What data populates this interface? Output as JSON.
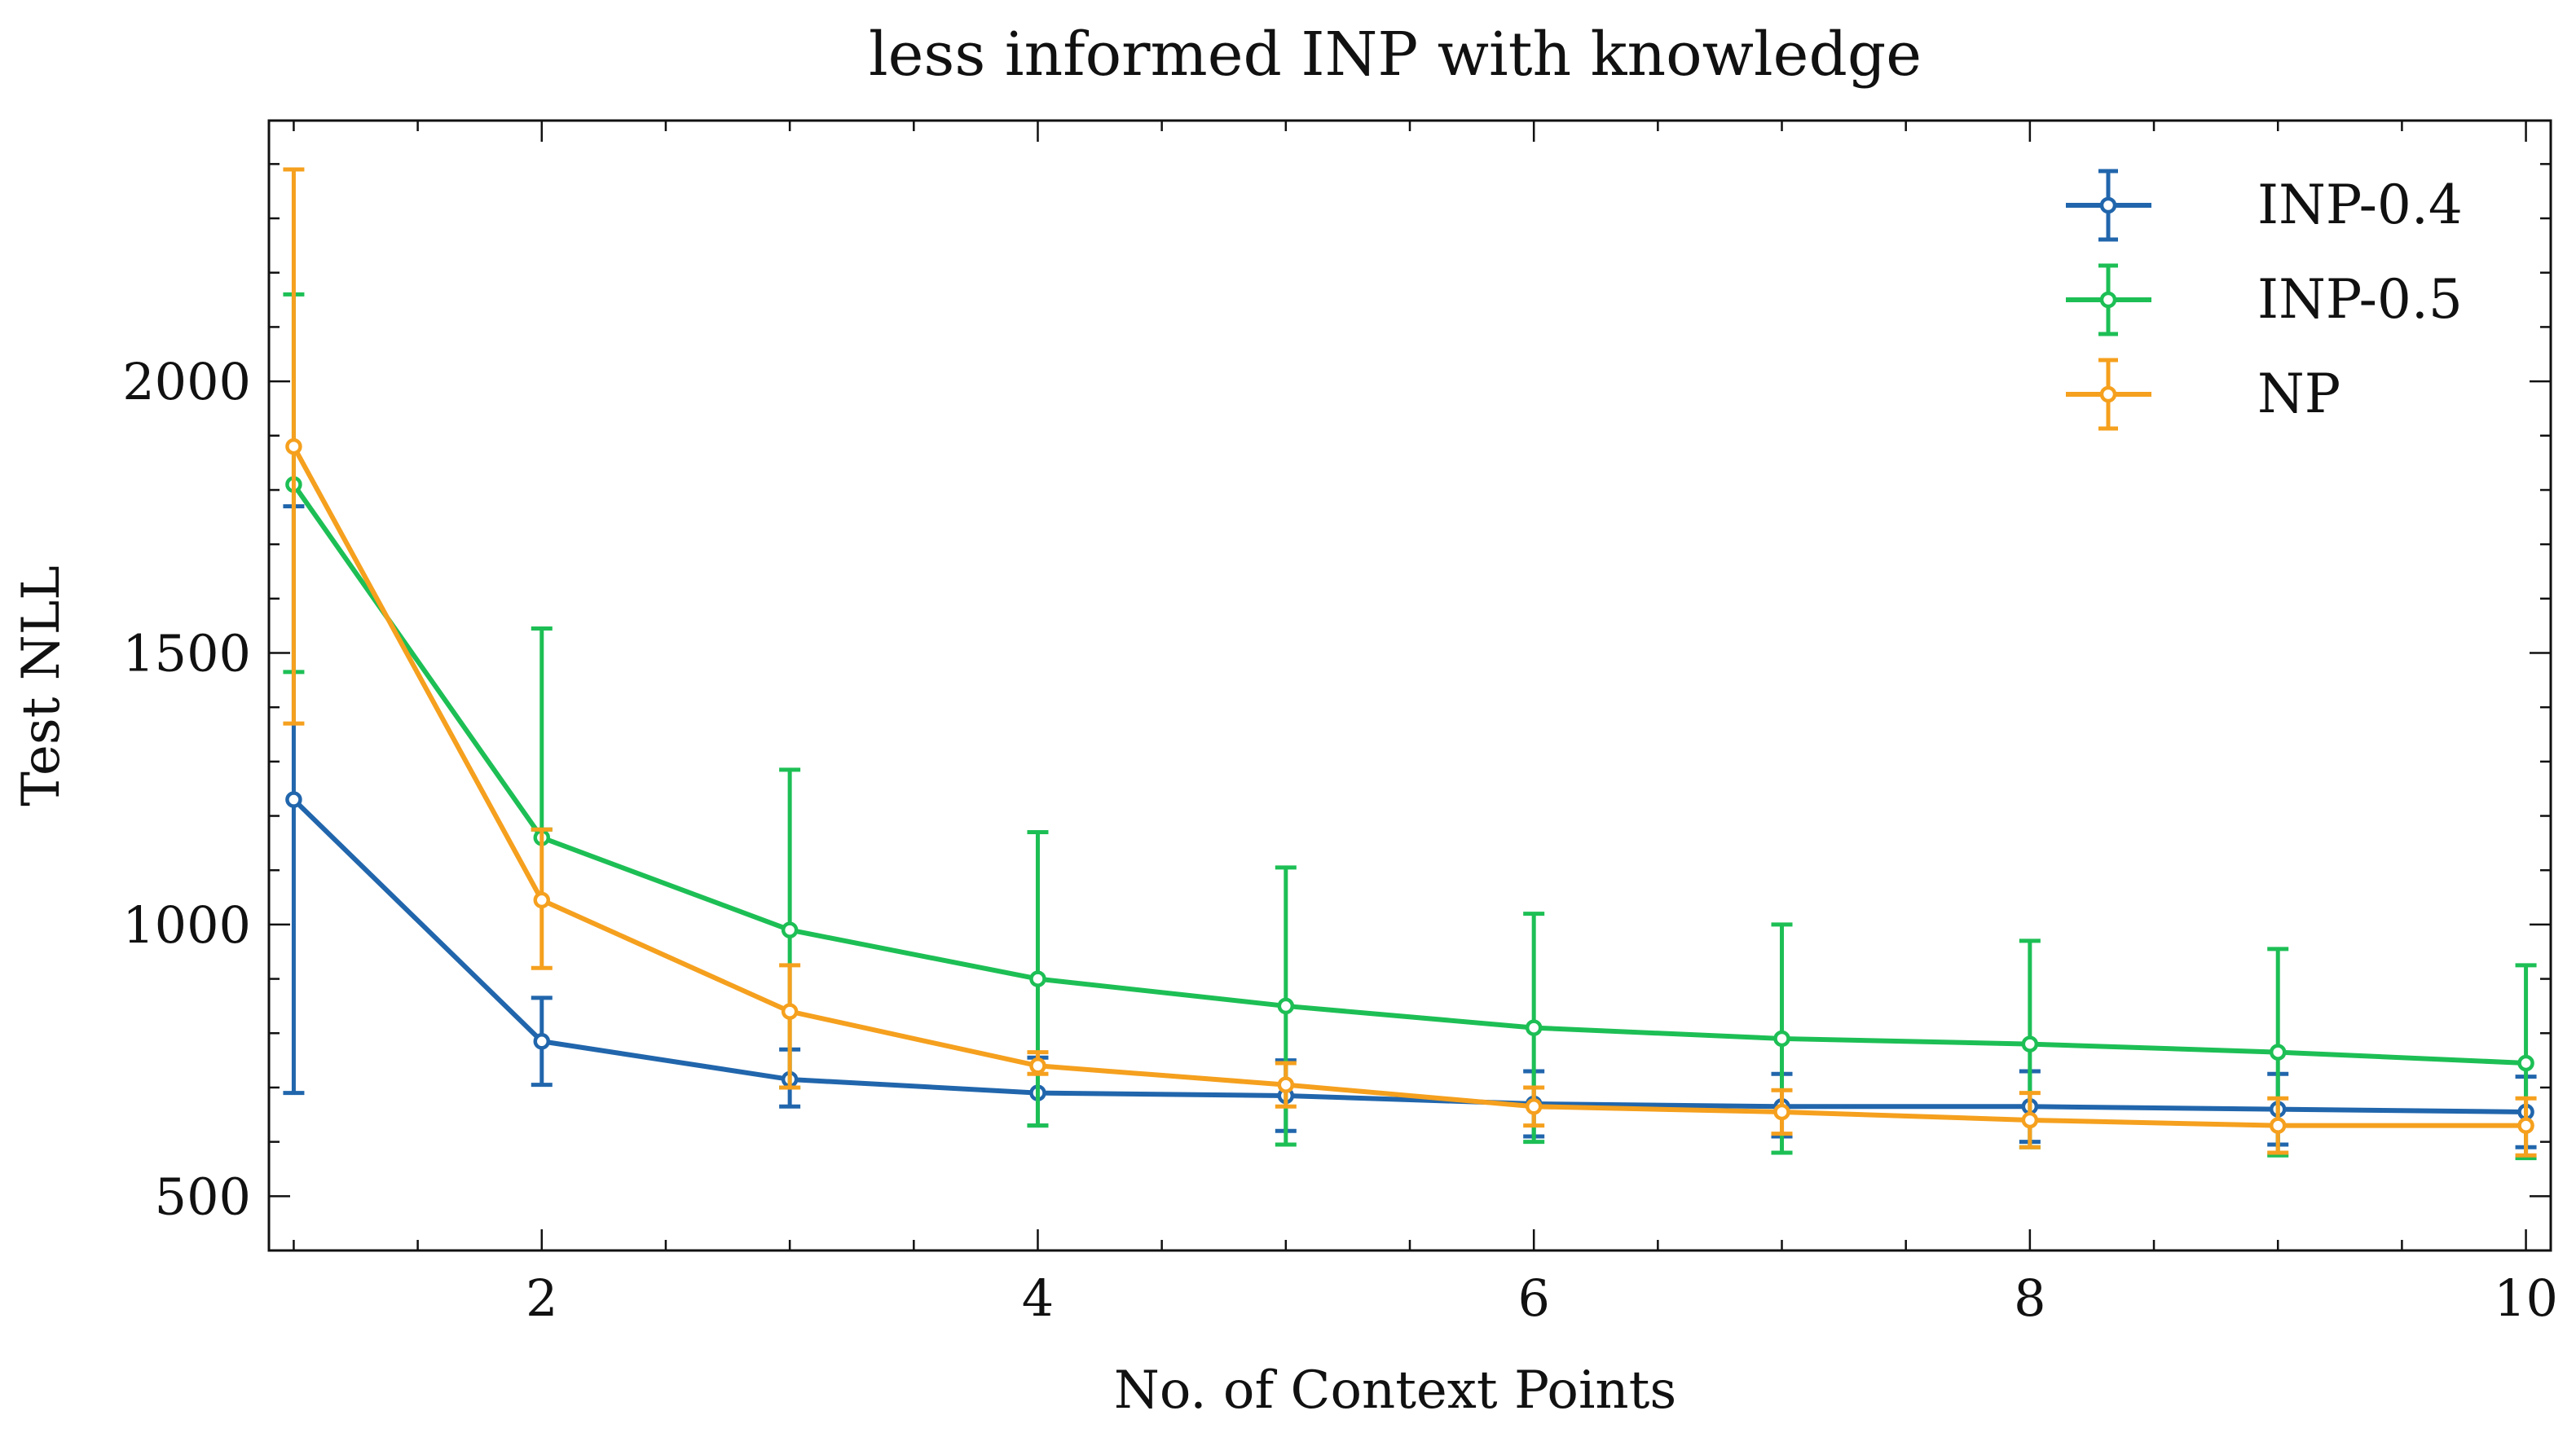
{
  "chart_data": {
    "type": "line",
    "title": "less informed INP with knowledge",
    "xlabel": "No. of Context Points",
    "ylabel": "Test NLL",
    "xlim": [
      0.9,
      10.1
    ],
    "ylim": [
      400,
      2480
    ],
    "xticks": [
      2,
      4,
      6,
      8,
      10
    ],
    "yticks": [
      500,
      1000,
      1500,
      2000
    ],
    "x": [
      1,
      2,
      3,
      4,
      5,
      6,
      7,
      8,
      9,
      10
    ],
    "legend_position": "top-right",
    "grid": false,
    "series": [
      {
        "name": "INP-0.4",
        "color": "#2166ac",
        "values": [
          1230,
          785,
          715,
          690,
          685,
          670,
          665,
          665,
          660,
          655
        ],
        "err_low": [
          690,
          705,
          665,
          630,
          620,
          610,
          610,
          600,
          595,
          590
        ],
        "err_high": [
          1770,
          865,
          770,
          755,
          750,
          730,
          725,
          730,
          725,
          720
        ]
      },
      {
        "name": "INP-0.5",
        "color": "#1dbf55",
        "values": [
          1810,
          1160,
          990,
          900,
          850,
          810,
          790,
          780,
          765,
          745
        ],
        "err_low": [
          1465,
          1175,
          700,
          630,
          595,
          600,
          580,
          590,
          575,
          570
        ],
        "err_high": [
          2160,
          1545,
          1285,
          1170,
          1105,
          1020,
          1000,
          970,
          955,
          925
        ]
      },
      {
        "name": "NP",
        "color": "#f5a01e",
        "values": [
          1880,
          1045,
          840,
          740,
          705,
          665,
          655,
          640,
          630,
          630
        ],
        "err_low": [
          1370,
          920,
          700,
          725,
          665,
          630,
          615,
          590,
          580,
          575
        ],
        "err_high": [
          2390,
          1175,
          925,
          765,
          745,
          700,
          695,
          690,
          680,
          680
        ]
      }
    ]
  }
}
